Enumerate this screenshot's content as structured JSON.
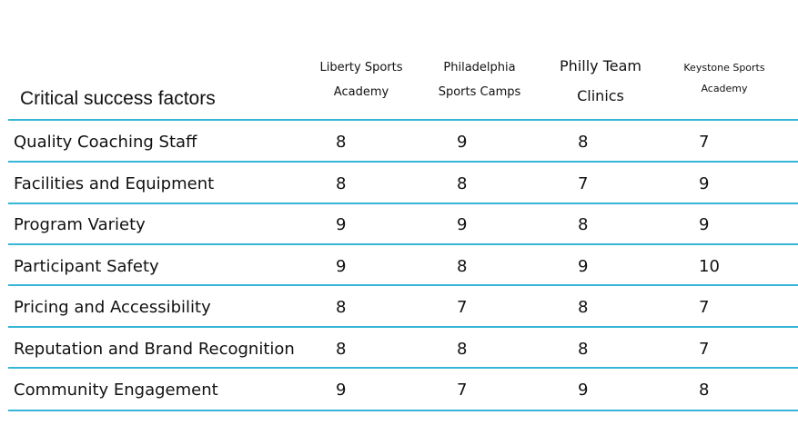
{
  "table": {
    "title": "Critical success factors",
    "competitors": [
      [
        "Liberty Sports",
        "Academy"
      ],
      [
        "Philadelphia",
        "Sports Camps"
      ],
      [
        "Philly Team",
        "Clinics"
      ],
      [
        "Keystone Sports",
        "Academy"
      ]
    ],
    "rows": [
      {
        "factor": "Quality Coaching Staff",
        "scores": [
          "8",
          "9",
          "8",
          "7"
        ]
      },
      {
        "factor": "Facilities and Equipment",
        "scores": [
          "8",
          "8",
          "7",
          "9"
        ]
      },
      {
        "factor": "Program Variety",
        "scores": [
          "9",
          "9",
          "8",
          "9"
        ]
      },
      {
        "factor": "Participant Safety",
        "scores": [
          "9",
          "8",
          "9",
          "10"
        ]
      },
      {
        "factor": "Pricing and Accessibility",
        "scores": [
          "8",
          "7",
          "8",
          "7"
        ]
      },
      {
        "factor": "Reputation and Brand Recognition",
        "scores": [
          "8",
          "8",
          "8",
          "7"
        ]
      },
      {
        "factor": "Community Engagement",
        "scores": [
          "9",
          "7",
          "9",
          "8"
        ]
      }
    ],
    "rule_color": "#35b6d6"
  }
}
